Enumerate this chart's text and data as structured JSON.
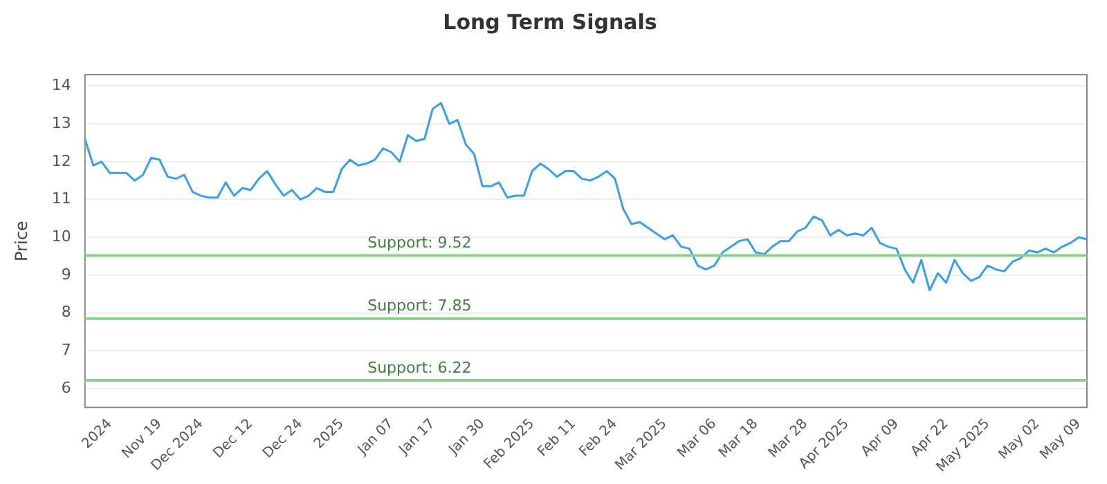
{
  "chart_data": {
    "type": "line",
    "title": "Long Term Signals",
    "ylabel": "Price",
    "categories": [
      null,
      null,
      null,
      "2024",
      null,
      null,
      null,
      null,
      null,
      "Nov 19",
      null,
      null,
      null,
      null,
      "Dec 2024",
      null,
      null,
      null,
      null,
      null,
      "Dec 12",
      null,
      null,
      null,
      null,
      null,
      "Dec 24",
      null,
      null,
      null,
      null,
      "2025",
      null,
      null,
      null,
      null,
      null,
      "Jan 07",
      null,
      null,
      null,
      null,
      "Jan 17",
      null,
      null,
      null,
      null,
      null,
      "Jan 30",
      null,
      null,
      null,
      null,
      null,
      "Feb 2025",
      null,
      null,
      null,
      null,
      "Feb 11",
      null,
      null,
      null,
      null,
      "Feb 24",
      null,
      null,
      null,
      null,
      null,
      "Mar 2025",
      null,
      null,
      null,
      null,
      null,
      "Mar 06",
      null,
      null,
      null,
      null,
      "Mar 18",
      null,
      null,
      null,
      null,
      null,
      "Mar 28",
      null,
      null,
      null,
      null,
      "Apr 2025",
      null,
      null,
      null,
      null,
      null,
      "Apr 09",
      null,
      null,
      null,
      null,
      null,
      "Apr 22",
      null,
      null,
      null,
      null,
      "May 2025",
      null,
      null,
      null,
      null,
      null,
      "May 02",
      null,
      null,
      null,
      null,
      "May 09",
      null
    ],
    "series": [
      {
        "color": "#3a9fe8",
        "values": [
          12.6,
          11.9,
          12.0,
          11.7,
          11.7,
          11.7,
          11.5,
          11.65,
          12.1,
          12.05,
          11.6,
          11.55,
          11.65,
          11.2,
          11.1,
          11.05,
          11.05,
          11.45,
          11.1,
          11.3,
          11.25,
          11.55,
          11.75,
          11.4,
          11.1,
          11.25,
          11.0,
          11.1,
          11.3,
          11.2,
          11.2,
          11.8,
          12.05,
          11.9,
          11.95,
          12.05,
          12.35,
          12.25,
          12.0,
          12.7,
          12.55,
          12.6,
          13.4,
          13.55,
          13.0,
          13.1,
          12.45,
          12.2,
          11.35,
          11.35,
          11.45,
          11.05,
          11.1,
          11.1,
          11.75,
          11.95,
          11.8,
          11.6,
          11.75,
          11.75,
          11.55,
          11.5,
          11.6,
          11.75,
          11.55,
          10.75,
          10.35,
          10.4,
          10.25,
          10.1,
          9.95,
          10.05,
          9.75,
          9.7,
          9.25,
          9.15,
          9.25,
          9.6,
          9.75,
          9.9,
          9.95,
          9.6,
          9.55,
          9.75,
          9.9,
          9.9,
          10.15,
          10.25,
          10.55,
          10.45,
          10.05,
          10.2,
          10.05,
          10.1,
          10.05,
          10.25,
          9.85,
          9.75,
          9.7,
          9.15,
          8.8,
          9.4,
          8.6,
          9.05,
          8.8,
          9.4,
          9.05,
          8.85,
          8.95,
          9.25,
          9.15,
          9.1,
          9.35,
          9.45,
          9.65,
          9.6,
          9.7,
          9.6,
          9.75,
          9.85,
          10.0,
          9.95
        ]
      }
    ],
    "ylim": [
      5.5,
      14.3
    ],
    "yticks": [
      6,
      7,
      8,
      9,
      10,
      11,
      12,
      13,
      14
    ],
    "grid": "y",
    "marker": "none",
    "line_style": "solid",
    "legend": false,
    "ref_lines": [
      {
        "axis": "y",
        "value": 9.52,
        "label": "Support: 9.52",
        "color": "#8fcc8f"
      },
      {
        "axis": "y",
        "value": 7.85,
        "label": "Support: 7.85",
        "color": "#8fcc8f"
      },
      {
        "axis": "y",
        "value": 6.22,
        "label": "Support: 6.22",
        "color": "#8fcc8f"
      }
    ]
  }
}
